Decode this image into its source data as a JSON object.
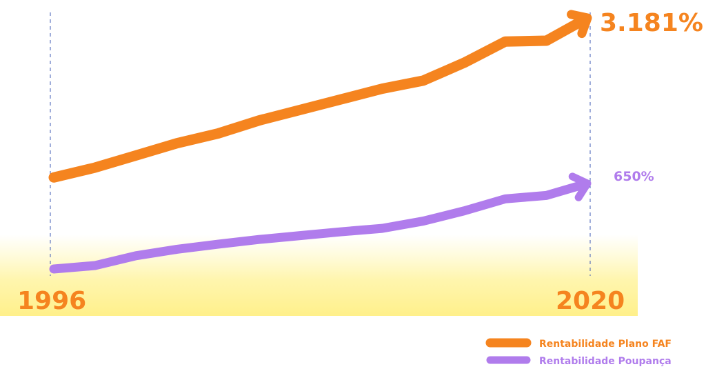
{
  "chart_data": {
    "type": "line",
    "x_start_label": "1996",
    "x_end_label": "2020",
    "series": [
      {
        "name": "Rentabilidade Plano FAF",
        "color": "#f5841f",
        "end_label": "3.181%",
        "values": [
          0.02,
          0.08,
          0.155,
          0.23,
          0.29,
          0.37,
          0.435,
          0.5,
          0.565,
          0.615,
          0.725,
          0.855,
          0.86,
          1.0
        ]
      },
      {
        "name": "Rentabilidade Poupança",
        "color": "#b07cec",
        "end_label": "650%",
        "values": [
          0.0,
          0.04,
          0.155,
          0.23,
          0.29,
          0.345,
          0.39,
          0.435,
          0.475,
          0.56,
          0.68,
          0.82,
          0.86,
          1.0
        ]
      }
    ],
    "grid": false,
    "legend_position": "bottom-right"
  }
}
